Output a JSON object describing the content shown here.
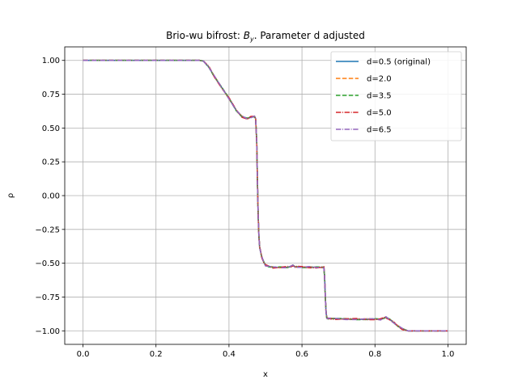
{
  "chart_data": {
    "type": "line",
    "title_plain": "Brio-wu bifrost: ",
    "title_math_base": "B",
    "title_math_sub": "y",
    "title_rest": ". Parameter d adjusted",
    "xlabel": "x",
    "ylabel": "ρ",
    "xlim": [
      -0.05,
      1.05
    ],
    "ylim": [
      -1.1,
      1.1
    ],
    "xticks": [
      0.0,
      0.2,
      0.4,
      0.6,
      0.8,
      1.0
    ],
    "xtick_labels": [
      "0.0",
      "0.2",
      "0.4",
      "0.6",
      "0.8",
      "1.0"
    ],
    "yticks": [
      1.0,
      0.75,
      0.5,
      0.25,
      0.0,
      -0.25,
      -0.5,
      -0.75,
      -1.0
    ],
    "ytick_labels": [
      "1.00",
      "0.75",
      "0.50",
      "0.25",
      "0.00",
      "−0.25",
      "−0.50",
      "−0.75",
      "−1.00"
    ],
    "grid": true,
    "legend_position": "top-right",
    "series": [
      {
        "name": "d=0.5 (original)",
        "color": "#1f77b4",
        "dash": "solid"
      },
      {
        "name": "d=2.0",
        "color": "#ff7f0e",
        "dash": "dashed"
      },
      {
        "name": "d=3.5",
        "color": "#2ca02c",
        "dash": "dashed"
      },
      {
        "name": "d=5.0",
        "color": "#d62728",
        "dash": "dashdot"
      },
      {
        "name": "d=6.5",
        "color": "#9467bd",
        "dash": "dashdot"
      }
    ],
    "x": [
      0.0,
      0.32,
      0.33,
      0.345,
      0.36,
      0.38,
      0.4,
      0.42,
      0.435,
      0.45,
      0.46,
      0.47,
      0.473,
      0.476,
      0.478,
      0.48,
      0.482,
      0.484,
      0.487,
      0.49,
      0.495,
      0.5,
      0.51,
      0.52,
      0.54,
      0.56,
      0.57,
      0.575,
      0.58,
      0.6,
      0.62,
      0.64,
      0.66,
      0.662,
      0.664,
      0.666,
      0.668,
      0.672,
      0.69,
      0.72,
      0.75,
      0.78,
      0.8,
      0.815,
      0.825,
      0.83,
      0.84,
      0.85,
      0.86,
      0.875,
      0.89,
      0.9,
      0.92,
      1.0
    ],
    "y_common": [
      1.0,
      1.0,
      0.995,
      0.95,
      0.88,
      0.8,
      0.72,
      0.63,
      0.585,
      0.57,
      0.58,
      0.585,
      0.57,
      0.4,
      0.1,
      -0.15,
      -0.3,
      -0.38,
      -0.42,
      -0.455,
      -0.49,
      -0.515,
      -0.525,
      -0.53,
      -0.53,
      -0.53,
      -0.525,
      -0.515,
      -0.525,
      -0.53,
      -0.53,
      -0.53,
      -0.53,
      -0.6,
      -0.75,
      -0.86,
      -0.905,
      -0.91,
      -0.91,
      -0.912,
      -0.915,
      -0.915,
      -0.912,
      -0.915,
      -0.905,
      -0.9,
      -0.915,
      -0.935,
      -0.96,
      -0.985,
      -1.0,
      -1.0,
      -1.0,
      -1.0
    ]
  }
}
